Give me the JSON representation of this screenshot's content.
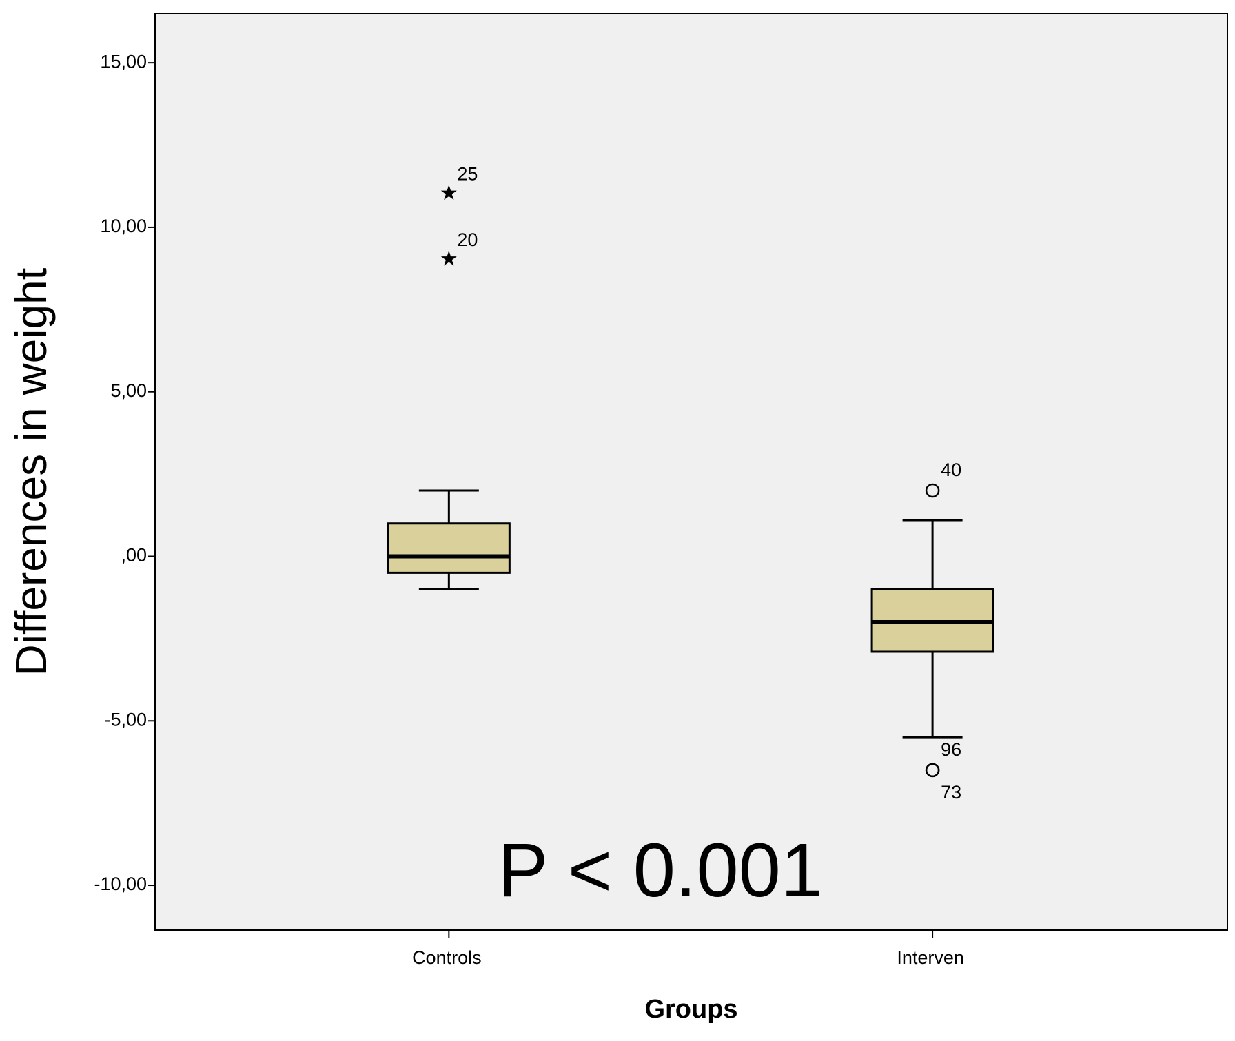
{
  "chart_data": {
    "type": "box",
    "y_label": "Differences in weight",
    "x_label": "Groups",
    "annotation": "P < 0.001",
    "categories": [
      "Controls",
      "Interven"
    ],
    "color": "#d9d09c",
    "background": "#f0f0f0",
    "boxes": [
      {
        "whislo": -1.0,
        "q1": -0.5,
        "med": 0.0,
        "q3": 1.0,
        "whishi": 2.0,
        "fliers": [
          {
            "value": 11.0,
            "label": "25",
            "marker": "star"
          },
          {
            "value": 9.0,
            "label": "20",
            "marker": "star"
          }
        ]
      },
      {
        "whislo": -5.5,
        "q1": -2.9,
        "med": -2.0,
        "q3": -1.0,
        "whishi": 1.1,
        "fliers": [
          {
            "value": 2.0,
            "label": "40",
            "marker": "circle"
          },
          {
            "value": -6.5,
            "label": "96",
            "marker": "circle"
          },
          {
            "value": -6.5,
            "label": "73",
            "marker": "circle"
          }
        ]
      }
    ],
    "ylim": [
      -11.36,
      16.49
    ],
    "yticks": [
      {
        "value": -10,
        "label": "-10,00"
      },
      {
        "value": -5,
        "label": "-5,00"
      },
      {
        "value": 0,
        "label": ",00"
      },
      {
        "value": 5,
        "label": "5,00"
      },
      {
        "value": 10,
        "label": "10,00"
      },
      {
        "value": 15,
        "label": "15,00"
      }
    ]
  }
}
